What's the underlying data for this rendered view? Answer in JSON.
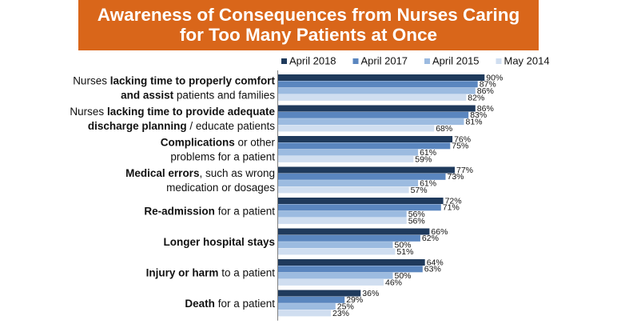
{
  "chart_data": {
    "type": "bar",
    "orientation": "horizontal",
    "title_lines": [
      "Awareness of Consequences from Nurses Caring",
      "for Too Many Patients at Once"
    ],
    "categories": [
      {
        "lines": [
          [
            [
              "Nurses ",
              false
            ],
            [
              "lacking time to properly comfort",
              true
            ]
          ],
          [
            [
              "and assist",
              true
            ],
            [
              " patients and families",
              false
            ]
          ]
        ]
      },
      {
        "lines": [
          [
            [
              "Nurses ",
              false
            ],
            [
              "lacking time to provide adequate",
              true
            ]
          ],
          [
            [
              "discharge planning",
              true
            ],
            [
              " / educate patients",
              false
            ]
          ]
        ]
      },
      {
        "lines": [
          [
            [
              "Complications",
              true
            ],
            [
              " or other",
              false
            ]
          ],
          [
            [
              "problems for a patient",
              false
            ]
          ]
        ]
      },
      {
        "lines": [
          [
            [
              "Medical errors",
              true
            ],
            [
              ", such as wrong",
              false
            ]
          ],
          [
            [
              "medication or dosages",
              false
            ]
          ]
        ]
      },
      {
        "lines": [
          [
            [
              "Re-admission",
              true
            ],
            [
              " for a patient",
              false
            ]
          ]
        ]
      },
      {
        "lines": [
          [
            [
              "Longer hospital stays",
              true
            ]
          ]
        ]
      },
      {
        "lines": [
          [
            [
              "Injury or harm",
              true
            ],
            [
              " to a patient",
              false
            ]
          ]
        ]
      },
      {
        "lines": [
          [
            [
              "Death",
              true
            ],
            [
              " for a patient",
              false
            ]
          ]
        ]
      }
    ],
    "series": [
      {
        "name": "April 2018",
        "color": "#1f3a5c",
        "values": [
          90,
          86,
          76,
          77,
          72,
          66,
          64,
          36
        ]
      },
      {
        "name": "April 2017",
        "color": "#5a86bf",
        "values": [
          87,
          83,
          75,
          73,
          71,
          62,
          63,
          29
        ]
      },
      {
        "name": "April 2015",
        "color": "#9cbbe0",
        "values": [
          86,
          81,
          61,
          61,
          56,
          50,
          50,
          25
        ]
      },
      {
        "name": "May 2014",
        "color": "#d0def0",
        "values": [
          82,
          68,
          59,
          57,
          56,
          51,
          46,
          23
        ]
      }
    ],
    "value_suffix": "%",
    "xlim": [
      0,
      100
    ],
    "legend_position": "top-right",
    "grid": false
  }
}
